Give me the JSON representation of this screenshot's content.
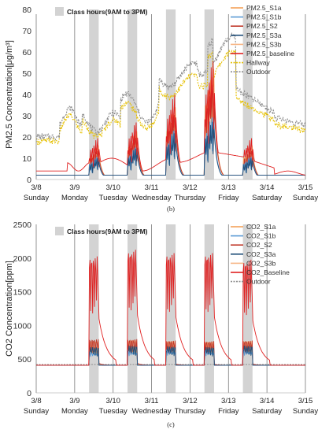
{
  "chart_data": [
    {
      "type": "line",
      "caption": "(b)",
      "ylabel": "PM2.5 Concentration[μg/m³]",
      "ylim": [
        0,
        80
      ],
      "yticks": [
        "0",
        "10",
        "20",
        "30",
        "40",
        "50",
        "60",
        "70",
        "80"
      ],
      "xlim": [
        0,
        7
      ],
      "xticks": [
        {
          "date": "3/8",
          "day": "Sunday"
        },
        {
          "date": "3/9",
          "day": "Monday"
        },
        {
          "date": "3/10",
          "day": "Tuesday"
        },
        {
          "date": "3/11",
          "day": "Wednesday"
        },
        {
          "date": "3/12",
          "day": "Thursday"
        },
        {
          "date": "3/13",
          "day": "Friday"
        },
        {
          "date": "3/14",
          "day": "Saturday"
        },
        {
          "date": "3/15",
          "day": "Sunday"
        }
      ],
      "class_hours_label": "Class hours(9AM to 3PM)",
      "class_hours_color": "#d3d3d3",
      "series": [
        {
          "name": "PM2.5_S1a",
          "color": "#f4a259",
          "style": "solid",
          "peaks": [
            17,
            24,
            36,
            55,
            17
          ]
        },
        {
          "name": "PM2.5_S1b",
          "color": "#5b9bd5",
          "style": "solid",
          "peaks": [
            12,
            17,
            26,
            33,
            12
          ]
        },
        {
          "name": "PM2.5_S2",
          "color": "#c0392b",
          "style": "solid",
          "peaks": [
            15,
            22,
            34,
            50,
            15
          ]
        },
        {
          "name": "PM2.5_S3a",
          "color": "#1f4e79",
          "style": "solid",
          "peaks": [
            11,
            16,
            24,
            30,
            11
          ]
        },
        {
          "name": "PM2.5_S3b",
          "color": "#f7b787",
          "style": "solid",
          "peaks": [
            14,
            21,
            32,
            48,
            14
          ]
        },
        {
          "name": "PM2.5_baseline",
          "color": "#e02020",
          "style": "solid",
          "peaks": [
            21,
            29,
            43,
            60,
            21
          ]
        },
        {
          "name": "Hallway",
          "color": "#e6c000",
          "style": "dotted"
        },
        {
          "name": "Outdoor",
          "color": "#8c8c8c",
          "style": "dotted"
        }
      ]
    },
    {
      "type": "line",
      "caption": "(c)",
      "ylabel": "CO2 Concentration[ppm]",
      "ylim": [
        0,
        2500
      ],
      "yticks": [
        "0",
        "500",
        "1000",
        "1500",
        "2000",
        "2500"
      ],
      "xlim": [
        0,
        7
      ],
      "xticks": [
        {
          "date": "3/8",
          "day": "Sunday"
        },
        {
          "date": "3/9",
          "day": "Monday"
        },
        {
          "date": "3/10",
          "day": "Tuesday"
        },
        {
          "date": "3/11",
          "day": "Wednesday"
        },
        {
          "date": "3/12",
          "day": "Thursday"
        },
        {
          "date": "3/13",
          "day": "Friday"
        },
        {
          "date": "3/14",
          "day": "Saturday"
        },
        {
          "date": "3/15",
          "day": "Sunday"
        }
      ],
      "class_hours_label": "Class hours(9AM to 3PM)",
      "class_hours_color": "#d3d3d3",
      "series": [
        {
          "name": "CO2_S1a",
          "color": "#f4a259",
          "style": "solid",
          "peaks": [
            700,
            720,
            760,
            740,
            760
          ]
        },
        {
          "name": "CO2_S1b",
          "color": "#5b9bd5",
          "style": "solid",
          "peaks": [
            620,
            640,
            650,
            640,
            650
          ]
        },
        {
          "name": "CO2_S2",
          "color": "#c0392b",
          "style": "solid",
          "peaks": [
            800,
            800,
            780,
            770,
            780
          ]
        },
        {
          "name": "CO2_S3a",
          "color": "#1f4e79",
          "style": "solid",
          "peaks": [
            680,
            700,
            690,
            680,
            700
          ]
        },
        {
          "name": "CO2_S3b",
          "color": "#f7b787",
          "style": "solid",
          "peaks": [
            760,
            780,
            770,
            760,
            770
          ]
        },
        {
          "name": "CO2_Baseline",
          "color": "#e02020",
          "style": "solid",
          "peaks": [
            2050,
            2150,
            2100,
            2100,
            2000
          ]
        },
        {
          "name": "Outdoor",
          "color": "#8c8c8c",
          "style": "dotted",
          "value": 420
        }
      ]
    }
  ]
}
